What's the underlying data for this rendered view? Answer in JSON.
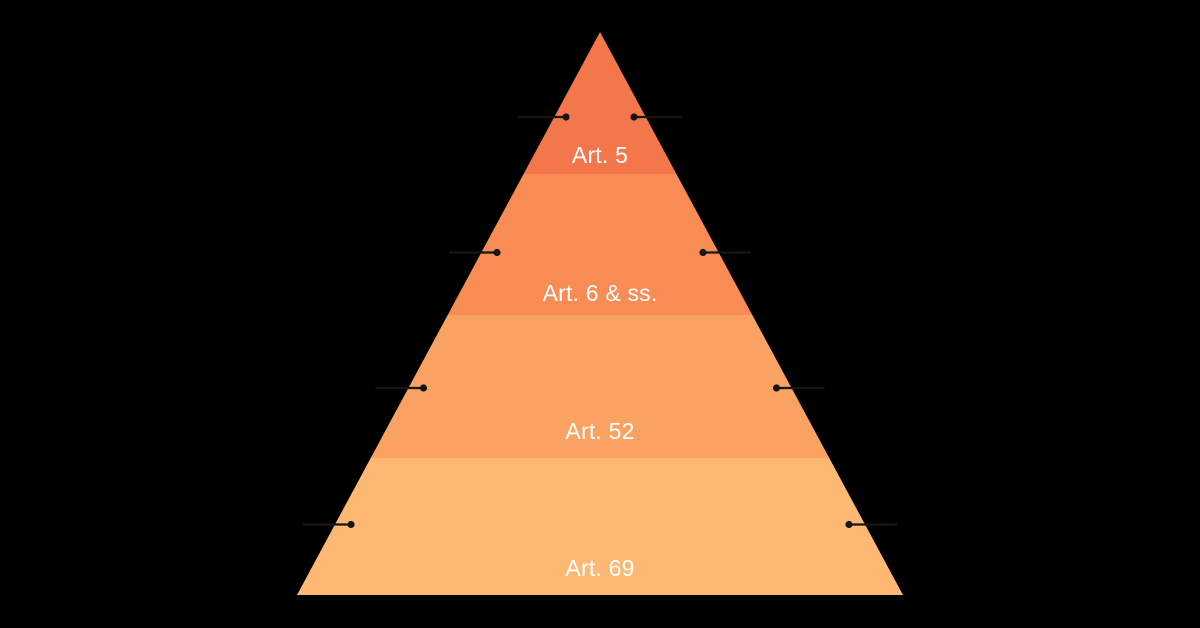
{
  "page": {
    "background_color": "#000000"
  },
  "chart_data": {
    "type": "pyramid",
    "title": "",
    "levels": [
      {
        "rank": 1,
        "label": "Art. 5",
        "color": "#F4774B"
      },
      {
        "rank": 2,
        "label": "Art. 6 & ss.",
        "color": "#F98C55"
      },
      {
        "rank": 3,
        "label": "Art. 52",
        "color": "#FAA262"
      },
      {
        "rank": 4,
        "label": "Art. 69",
        "color": "#FDB873"
      }
    ],
    "label_color": "#FFFFFF",
    "callout_color": "#161616",
    "callouts_per_level": 2,
    "legend": "none",
    "axes": "none"
  }
}
